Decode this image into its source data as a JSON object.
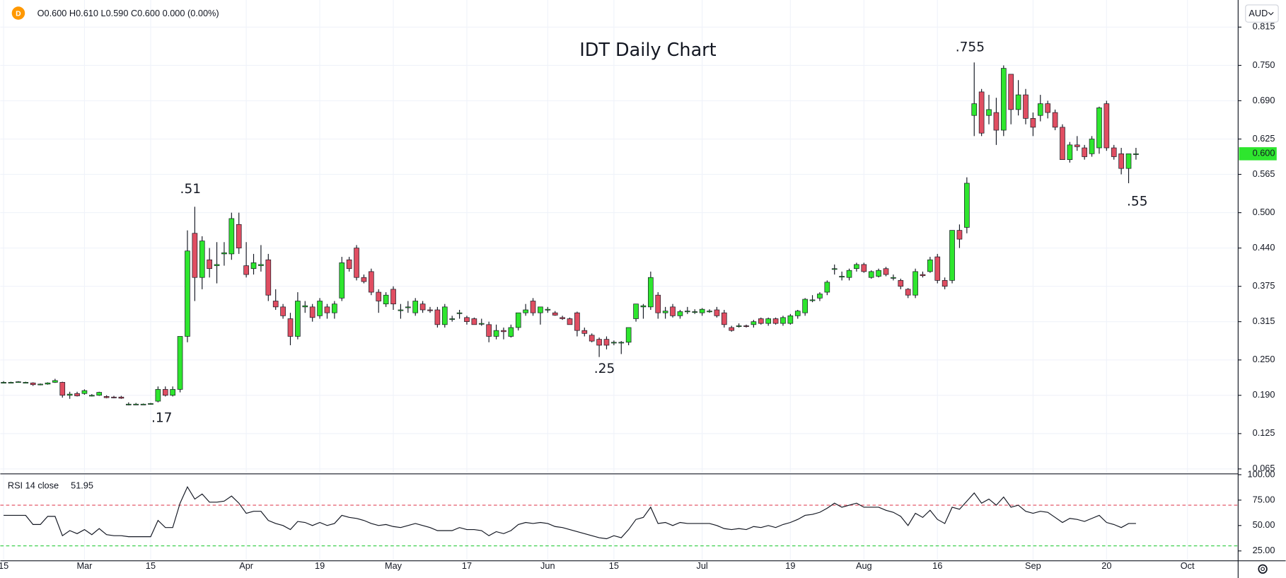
{
  "header": {
    "symbol_icon": "D",
    "ohlc": "O0.600 H0.610 L0.590 C0.600 0.000 (0.00%)",
    "currency": "AUD"
  },
  "chart_data": {
    "type": "candlestick",
    "title": "IDT Daily Chart",
    "annotations": [
      ".51",
      ".17",
      ".25",
      ".755",
      ".55"
    ],
    "up_color": "#2ee62e",
    "down_color": "#e04e62",
    "wick_color": "#131722",
    "grid": true,
    "ylim": [
      0.058,
      0.861
    ],
    "yticks": [
      {
        "value": 0.815,
        "label": "0.815"
      },
      {
        "value": 0.75,
        "label": "0.750"
      },
      {
        "value": 0.69,
        "label": "0.690"
      },
      {
        "value": 0.625,
        "label": "0.625"
      },
      {
        "value": 0.565,
        "label": "0.565"
      },
      {
        "value": 0.5,
        "label": "0.500"
      },
      {
        "value": 0.44,
        "label": "0.440"
      },
      {
        "value": 0.375,
        "label": "0.375"
      },
      {
        "value": 0.315,
        "label": "0.315"
      },
      {
        "value": 0.25,
        "label": "0.250"
      },
      {
        "value": 0.19,
        "label": "0.190"
      },
      {
        "value": 0.125,
        "label": "0.125"
      },
      {
        "value": 0.065,
        "label": "0.065"
      }
    ],
    "last_price": {
      "value": 0.6,
      "label": "0.600"
    },
    "categories": [
      "15",
      null,
      null,
      null,
      null,
      null,
      null,
      null,
      null,
      null,
      null,
      "Mar",
      null,
      null,
      null,
      null,
      null,
      null,
      null,
      null,
      "15",
      null,
      null,
      null,
      null,
      null,
      null,
      null,
      null,
      null,
      null,
      null,
      null,
      "Apr",
      null,
      null,
      null,
      null,
      null,
      null,
      null,
      null,
      null,
      "19",
      null,
      null,
      null,
      null,
      null,
      null,
      null,
      null,
      null,
      "May",
      null,
      null,
      null,
      null,
      null,
      null,
      null,
      null,
      null,
      "17",
      null,
      null,
      null,
      null,
      null,
      null,
      null,
      null,
      null,
      null,
      "Jun",
      null,
      null,
      null,
      null,
      null,
      null,
      null,
      null,
      "15",
      null,
      null,
      null,
      null,
      null,
      null,
      null,
      null,
      null,
      null,
      null,
      "Jul",
      null,
      null,
      null,
      null,
      null,
      null,
      null,
      null,
      null,
      null,
      null,
      "19",
      null,
      null,
      null,
      null,
      null,
      null,
      null,
      null,
      null,
      "Aug",
      null,
      null,
      null,
      null,
      null,
      null,
      null,
      null,
      null,
      "16",
      null,
      null,
      null,
      null,
      null,
      null,
      null,
      null,
      null,
      null,
      null,
      null,
      "Sep",
      null,
      null,
      null,
      null,
      null,
      null,
      null,
      null,
      null,
      "20",
      null,
      null,
      null,
      null,
      null,
      null,
      null,
      null,
      null,
      null,
      "Oct",
      null,
      null,
      null,
      null,
      null,
      null
    ],
    "ohlc": [
      [
        0.212,
        0.214,
        0.211,
        0.212
      ],
      [
        0.212,
        0.213,
        0.211,
        0.212
      ],
      [
        0.213,
        0.214,
        0.212,
        0.213
      ],
      [
        0.212,
        0.213,
        0.211,
        0.212
      ],
      [
        0.211,
        0.212,
        0.206,
        0.208
      ],
      [
        0.208,
        0.21,
        0.207,
        0.209
      ],
      [
        0.209,
        0.212,
        0.208,
        0.211
      ],
      [
        0.212,
        0.218,
        0.211,
        0.215
      ],
      [
        0.212,
        0.213,
        0.186,
        0.19
      ],
      [
        0.19,
        0.196,
        0.184,
        0.192
      ],
      [
        0.193,
        0.196,
        0.188,
        0.189
      ],
      [
        0.193,
        0.2,
        0.191,
        0.198
      ],
      [
        0.19,
        0.192,
        0.188,
        0.19
      ],
      [
        0.19,
        0.196,
        0.189,
        0.195
      ],
      [
        0.188,
        0.19,
        0.185,
        0.186
      ],
      [
        0.187,
        0.189,
        0.185,
        0.186
      ],
      [
        0.187,
        0.189,
        0.184,
        0.185
      ],
      [
        0.175,
        0.178,
        0.173,
        0.175
      ],
      [
        0.175,
        0.177,
        0.174,
        0.175
      ],
      [
        0.175,
        0.176,
        0.174,
        0.175
      ],
      [
        0.175,
        0.177,
        0.174,
        0.176
      ],
      [
        0.18,
        0.205,
        0.178,
        0.2
      ],
      [
        0.2,
        0.205,
        0.188,
        0.19
      ],
      [
        0.19,
        0.205,
        0.188,
        0.2
      ],
      [
        0.2,
        0.29,
        0.195,
        0.29
      ],
      [
        0.29,
        0.47,
        0.28,
        0.435
      ],
      [
        0.465,
        0.51,
        0.35,
        0.39
      ],
      [
        0.39,
        0.46,
        0.37,
        0.452
      ],
      [
        0.42,
        0.44,
        0.39,
        0.405
      ],
      [
        0.41,
        0.45,
        0.38,
        0.412
      ],
      [
        0.43,
        0.45,
        0.41,
        0.432
      ],
      [
        0.43,
        0.5,
        0.42,
        0.49
      ],
      [
        0.48,
        0.5,
        0.43,
        0.44
      ],
      [
        0.41,
        0.45,
        0.39,
        0.395
      ],
      [
        0.405,
        0.43,
        0.395,
        0.415
      ],
      [
        0.41,
        0.445,
        0.4,
        0.412
      ],
      [
        0.42,
        0.43,
        0.35,
        0.36
      ],
      [
        0.35,
        0.37,
        0.335,
        0.34
      ],
      [
        0.34,
        0.345,
        0.32,
        0.325
      ],
      [
        0.32,
        0.33,
        0.275,
        0.29
      ],
      [
        0.29,
        0.365,
        0.285,
        0.35
      ],
      [
        0.34,
        0.35,
        0.33,
        0.342
      ],
      [
        0.34,
        0.345,
        0.315,
        0.322
      ],
      [
        0.325,
        0.355,
        0.32,
        0.35
      ],
      [
        0.34,
        0.345,
        0.32,
        0.33
      ],
      [
        0.33,
        0.35,
        0.32,
        0.345
      ],
      [
        0.355,
        0.425,
        0.35,
        0.415
      ],
      [
        0.42,
        0.425,
        0.4,
        0.405
      ],
      [
        0.44,
        0.445,
        0.385,
        0.39
      ],
      [
        0.39,
        0.395,
        0.38,
        0.383
      ],
      [
        0.4,
        0.405,
        0.36,
        0.365
      ],
      [
        0.365,
        0.37,
        0.33,
        0.35
      ],
      [
        0.345,
        0.365,
        0.34,
        0.36
      ],
      [
        0.37,
        0.375,
        0.335,
        0.345
      ],
      [
        0.335,
        0.345,
        0.32,
        0.335
      ],
      [
        0.34,
        0.35,
        0.33,
        0.34
      ],
      [
        0.33,
        0.355,
        0.325,
        0.35
      ],
      [
        0.345,
        0.35,
        0.33,
        0.335
      ],
      [
        0.335,
        0.34,
        0.33,
        0.334
      ],
      [
        0.335,
        0.34,
        0.305,
        0.31
      ],
      [
        0.31,
        0.345,
        0.305,
        0.34
      ],
      [
        0.32,
        0.325,
        0.315,
        0.32
      ],
      [
        0.33,
        0.335,
        0.32,
        0.33
      ],
      [
        0.322,
        0.325,
        0.31,
        0.315
      ],
      [
        0.32,
        0.322,
        0.31,
        0.31
      ],
      [
        0.312,
        0.32,
        0.308,
        0.312
      ],
      [
        0.31,
        0.315,
        0.28,
        0.29
      ],
      [
        0.29,
        0.31,
        0.285,
        0.3
      ],
      [
        0.3,
        0.305,
        0.285,
        0.298
      ],
      [
        0.29,
        0.31,
        0.288,
        0.305
      ],
      [
        0.305,
        0.33,
        0.3,
        0.33
      ],
      [
        0.33,
        0.345,
        0.325,
        0.335
      ],
      [
        0.35,
        0.355,
        0.325,
        0.33
      ],
      [
        0.33,
        0.34,
        0.31,
        0.34
      ],
      [
        0.335,
        0.34,
        0.33,
        0.336
      ],
      [
        0.33,
        0.333,
        0.325,
        0.326
      ],
      [
        0.322,
        0.325,
        0.318,
        0.32
      ],
      [
        0.32,
        0.322,
        0.31,
        0.31
      ],
      [
        0.33,
        0.332,
        0.29,
        0.3
      ],
      [
        0.3,
        0.305,
        0.29,
        0.295
      ],
      [
        0.292,
        0.295,
        0.28,
        0.282
      ],
      [
        0.285,
        0.288,
        0.255,
        0.275
      ],
      [
        0.285,
        0.29,
        0.268,
        0.275
      ],
      [
        0.28,
        0.283,
        0.275,
        0.28
      ],
      [
        0.28,
        0.282,
        0.26,
        0.28
      ],
      [
        0.28,
        0.305,
        0.275,
        0.305
      ],
      [
        0.32,
        0.345,
        0.315,
        0.345
      ],
      [
        0.34,
        0.345,
        0.32,
        0.342
      ],
      [
        0.34,
        0.4,
        0.335,
        0.39
      ],
      [
        0.36,
        0.365,
        0.32,
        0.33
      ],
      [
        0.33,
        0.34,
        0.32,
        0.333
      ],
      [
        0.34,
        0.345,
        0.322,
        0.325
      ],
      [
        0.325,
        0.335,
        0.32,
        0.332
      ],
      [
        0.332,
        0.34,
        0.328,
        0.333
      ],
      [
        0.331,
        0.336,
        0.328,
        0.332
      ],
      [
        0.33,
        0.338,
        0.325,
        0.336
      ],
      [
        0.333,
        0.336,
        0.33,
        0.333
      ],
      [
        0.335,
        0.34,
        0.322,
        0.325
      ],
      [
        0.33,
        0.335,
        0.305,
        0.31
      ],
      [
        0.305,
        0.308,
        0.298,
        0.3
      ],
      [
        0.308,
        0.312,
        0.305,
        0.308
      ],
      [
        0.308,
        0.31,
        0.305,
        0.307
      ],
      [
        0.31,
        0.318,
        0.305,
        0.315
      ],
      [
        0.32,
        0.322,
        0.31,
        0.312
      ],
      [
        0.312,
        0.322,
        0.308,
        0.32
      ],
      [
        0.32,
        0.322,
        0.31,
        0.312
      ],
      [
        0.312,
        0.325,
        0.308,
        0.322
      ],
      [
        0.312,
        0.328,
        0.31,
        0.325
      ],
      [
        0.325,
        0.335,
        0.32,
        0.333
      ],
      [
        0.33,
        0.355,
        0.325,
        0.353
      ],
      [
        0.352,
        0.36,
        0.348,
        0.352
      ],
      [
        0.355,
        0.365,
        0.35,
        0.362
      ],
      [
        0.365,
        0.385,
        0.36,
        0.382
      ],
      [
        0.405,
        0.412,
        0.395,
        0.405
      ],
      [
        0.392,
        0.4,
        0.385,
        0.392
      ],
      [
        0.39,
        0.405,
        0.385,
        0.402
      ],
      [
        0.405,
        0.415,
        0.4,
        0.412
      ],
      [
        0.412,
        0.415,
        0.398,
        0.4
      ],
      [
        0.39,
        0.402,
        0.388,
        0.4
      ],
      [
        0.392,
        0.405,
        0.39,
        0.402
      ],
      [
        0.405,
        0.408,
        0.392,
        0.395
      ],
      [
        0.39,
        0.395,
        0.385,
        0.39
      ],
      [
        0.385,
        0.388,
        0.37,
        0.375
      ],
      [
        0.37,
        0.372,
        0.355,
        0.36
      ],
      [
        0.36,
        0.405,
        0.355,
        0.4
      ],
      [
        0.395,
        0.4,
        0.39,
        0.393
      ],
      [
        0.4,
        0.425,
        0.398,
        0.42
      ],
      [
        0.425,
        0.43,
        0.38,
        0.385
      ],
      [
        0.385,
        0.39,
        0.37,
        0.375
      ],
      [
        0.385,
        0.47,
        0.38,
        0.47
      ],
      [
        0.47,
        0.48,
        0.44,
        0.455
      ],
      [
        0.475,
        0.56,
        0.465,
        0.55
      ],
      [
        0.665,
        0.755,
        0.63,
        0.685
      ],
      [
        0.705,
        0.71,
        0.63,
        0.635
      ],
      [
        0.665,
        0.7,
        0.65,
        0.675
      ],
      [
        0.67,
        0.695,
        0.615,
        0.64
      ],
      [
        0.64,
        0.75,
        0.63,
        0.745
      ],
      [
        0.735,
        0.735,
        0.65,
        0.675
      ],
      [
        0.675,
        0.725,
        0.665,
        0.7
      ],
      [
        0.7,
        0.71,
        0.65,
        0.66
      ],
      [
        0.66,
        0.67,
        0.63,
        0.645
      ],
      [
        0.665,
        0.7,
        0.655,
        0.685
      ],
      [
        0.685,
        0.69,
        0.66,
        0.67
      ],
      [
        0.67,
        0.675,
        0.64,
        0.645
      ],
      [
        0.645,
        0.65,
        0.59,
        0.59
      ],
      [
        0.59,
        0.62,
        0.585,
        0.615
      ],
      [
        0.615,
        0.63,
        0.605,
        0.612
      ],
      [
        0.61,
        0.615,
        0.59,
        0.595
      ],
      [
        0.6,
        0.63,
        0.595,
        0.625
      ],
      [
        0.61,
        0.68,
        0.6,
        0.678
      ],
      [
        0.685,
        0.69,
        0.605,
        0.61
      ],
      [
        0.61,
        0.615,
        0.59,
        0.595
      ],
      [
        0.6,
        0.61,
        0.565,
        0.575
      ],
      [
        0.575,
        0.6,
        0.55,
        0.6
      ],
      [
        0.6,
        0.61,
        0.59,
        0.6
      ],
      null,
      null,
      null,
      null,
      null,
      null,
      null,
      null,
      null,
      null,
      null,
      null,
      null
    ],
    "indicator": {
      "type": "line",
      "name": "RSI 14 close",
      "last_value": 51.95,
      "color": "#131722",
      "upper_band": 70,
      "upper_color": "#e0485a",
      "lower_band": 30,
      "lower_color": "#2ecc40",
      "ylim": [
        14.5,
        100
      ],
      "yticks": [
        {
          "value": 100,
          "label": "100.00"
        },
        {
          "value": 75,
          "label": "75.00"
        },
        {
          "value": 50,
          "label": "50.00"
        },
        {
          "value": 25,
          "label": "25.00"
        }
      ],
      "values": [
        60,
        60,
        60,
        60,
        51,
        51,
        59,
        59,
        40,
        45,
        42,
        46,
        41,
        47,
        41,
        40,
        40,
        39,
        39,
        39,
        39,
        55,
        48,
        48,
        72,
        88,
        76,
        81,
        73,
        73,
        74,
        79,
        72,
        62,
        64,
        64,
        55,
        52,
        50,
        46,
        54,
        53,
        50,
        53,
        50,
        52,
        60,
        58,
        57,
        55,
        52,
        50,
        51,
        49,
        48,
        50,
        52,
        50,
        48,
        45,
        45,
        45,
        48,
        46,
        46,
        45,
        40,
        44,
        42,
        45,
        51,
        53,
        52,
        53,
        52,
        49,
        48,
        46,
        44,
        42,
        40,
        38,
        37,
        40,
        38,
        46,
        56,
        58,
        68,
        52,
        53,
        50,
        53,
        52,
        52,
        52,
        52,
        50,
        47,
        46,
        47,
        46,
        49,
        48,
        50,
        48,
        51,
        53,
        56,
        60,
        61,
        63,
        67,
        72,
        68,
        70,
        72,
        68,
        68,
        68,
        65,
        63,
        59,
        50,
        62,
        58,
        65,
        56,
        52,
        68,
        66,
        74,
        82,
        72,
        76,
        70,
        78,
        68,
        70,
        64,
        62,
        64,
        63,
        58,
        53,
        57,
        56,
        54,
        57,
        60,
        53,
        51,
        48,
        52,
        52,
        null,
        null,
        null,
        null,
        null,
        null,
        null,
        null,
        null,
        null,
        null,
        null,
        null
      ]
    }
  }
}
